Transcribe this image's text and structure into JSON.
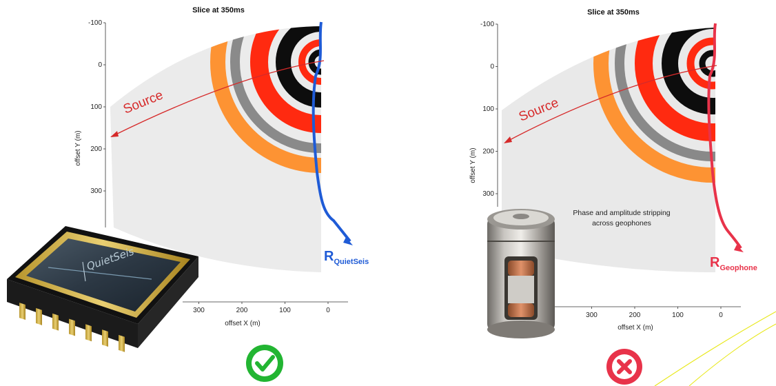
{
  "chart_data": [
    {
      "type": "heatmap",
      "title": "Slice at 350ms",
      "xlabel": "offset X (m)",
      "ylabel": "offset Y (m)",
      "x_ticks": [
        300,
        200,
        100,
        0
      ],
      "y_ticks": [
        -100,
        0,
        100,
        200,
        300
      ],
      "source_label": "Source",
      "receiver": {
        "main": "R",
        "sub": "QuietSeis"
      },
      "receiver_color": "#1f5bd6",
      "sensor_label": "QuietSeis",
      "status": "check",
      "status_color": "#22b532"
    },
    {
      "type": "heatmap",
      "title": "Slice at 350ms",
      "xlabel": "offset X (m)",
      "ylabel": "offset Y (m)",
      "x_ticks": [
        300,
        200,
        100,
        0
      ],
      "y_ticks": [
        -100,
        0,
        100,
        200,
        300
      ],
      "source_label": "Source",
      "receiver": {
        "main": "R",
        "sub": "Geophone"
      },
      "receiver_color": "#e8334a",
      "annotation": [
        "Phase and amplitude stripping",
        "across geophones"
      ],
      "status": "cross",
      "status_color": "#e8334a",
      "partial_tick": "0"
    }
  ]
}
